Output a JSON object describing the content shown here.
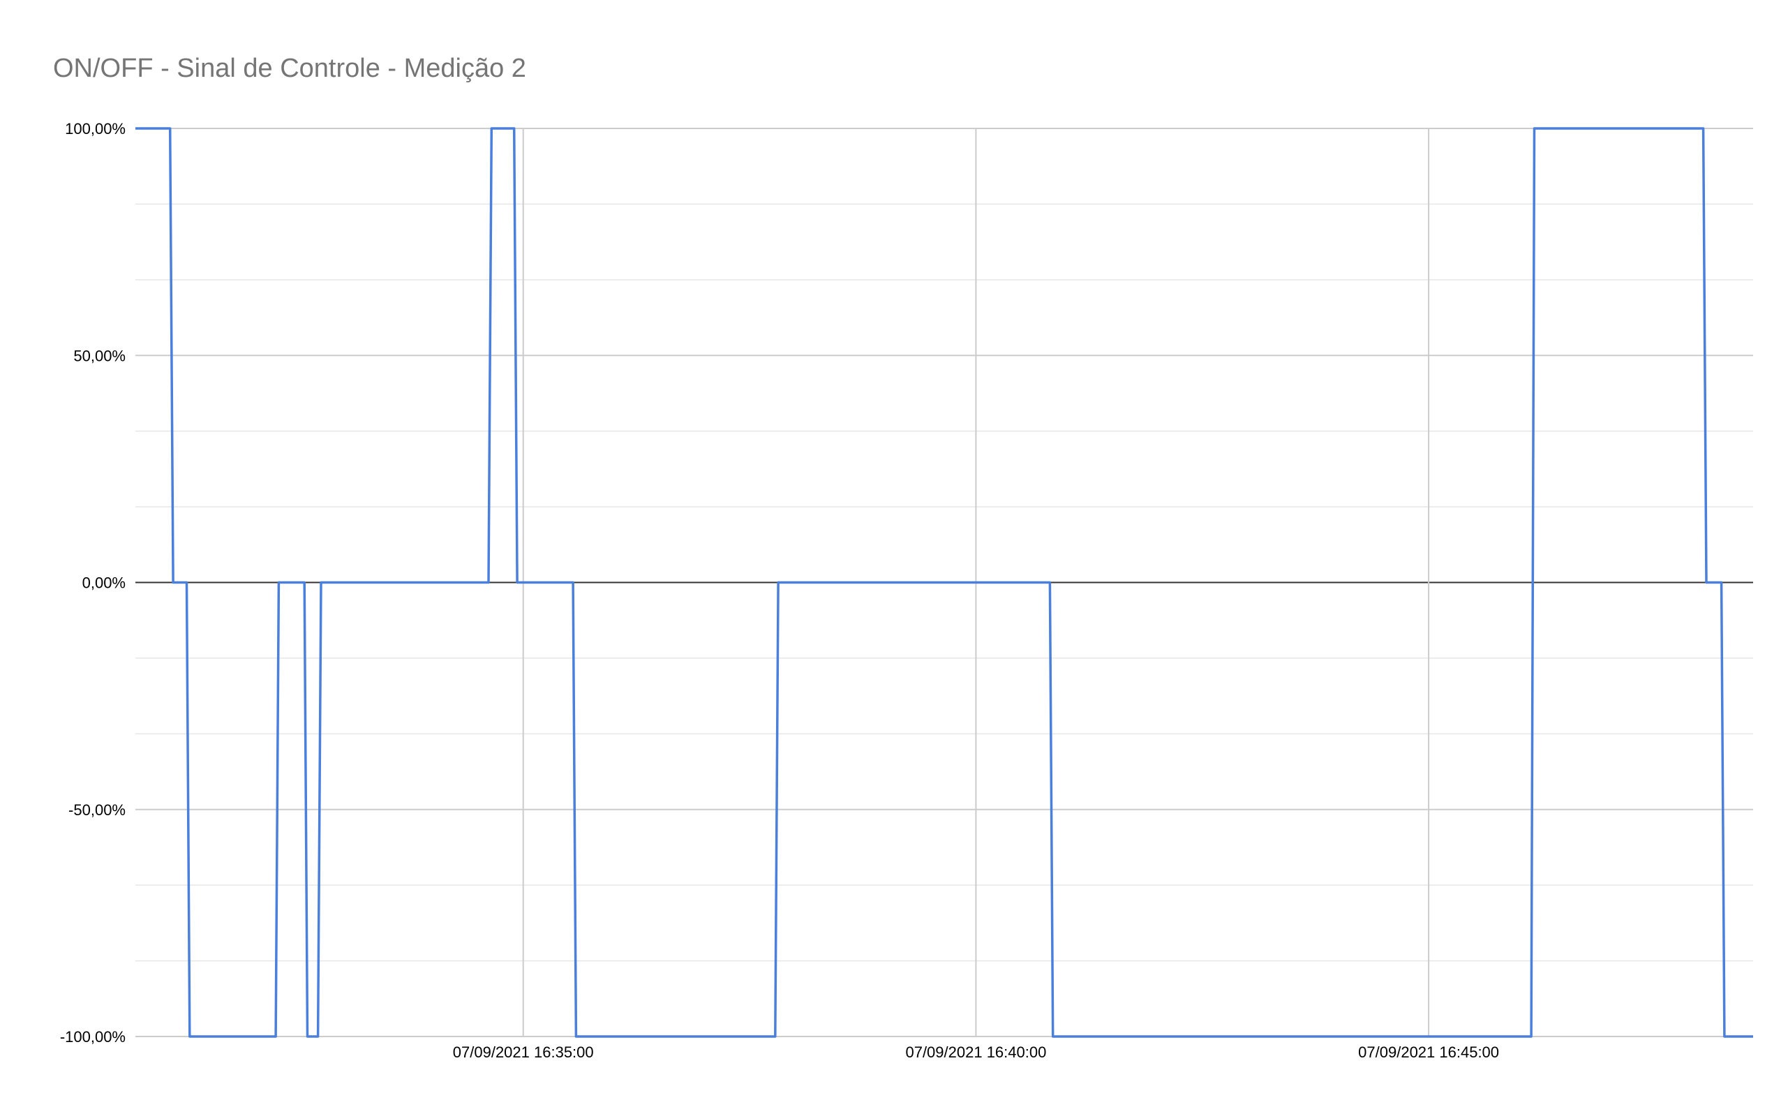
{
  "chart_data": {
    "type": "line",
    "title": "ON/OFF - Sinal de Controle - Medição 2",
    "xlabel": "",
    "ylabel": "",
    "ylim": [
      -100,
      100
    ],
    "yticks": [
      {
        "value": 100,
        "label": "100,00%"
      },
      {
        "value": 50,
        "label": "50,00%"
      },
      {
        "value": 0,
        "label": "0,00%"
      },
      {
        "value": -50,
        "label": "-50,00%"
      },
      {
        "value": -100,
        "label": "-100,00%"
      }
    ],
    "xlim": [
      "07/09/2021 16:30:43",
      "07/09/2021 16:48:35"
    ],
    "xticks": [
      {
        "value": "07/09/2021 16:35:00",
        "label": "07/09/2021 16:35:00"
      },
      {
        "value": "07/09/2021 16:40:00",
        "label": "07/09/2021 16:40:00"
      },
      {
        "value": "07/09/2021 16:45:00",
        "label": "07/09/2021 16:45:00"
      }
    ],
    "grid": true,
    "legend": "none",
    "series": [
      {
        "color": "#4a7fdc",
        "x": [
          "07/09/2021 16:30:43",
          "07/09/2021 16:31:06",
          "07/09/2021 16:31:08",
          "07/09/2021 16:31:17",
          "07/09/2021 16:31:19",
          "07/09/2021 16:32:16",
          "07/09/2021 16:32:18",
          "07/09/2021 16:32:35",
          "07/09/2021 16:32:37",
          "07/09/2021 16:32:44",
          "07/09/2021 16:32:46",
          "07/09/2021 16:34:37",
          "07/09/2021 16:34:39",
          "07/09/2021 16:34:54",
          "07/09/2021 16:34:56",
          "07/09/2021 16:35:33",
          "07/09/2021 16:35:35",
          "07/09/2021 16:37:47",
          "07/09/2021 16:37:49",
          "07/09/2021 16:40:49",
          "07/09/2021 16:40:51",
          "07/09/2021 16:46:08",
          "07/09/2021 16:46:10",
          "07/09/2021 16:48:02",
          "07/09/2021 16:48:04",
          "07/09/2021 16:48:14",
          "07/09/2021 16:48:16",
          "07/09/2021 16:48:35"
        ],
        "values": [
          100,
          100,
          0,
          0,
          -100,
          -100,
          0,
          0,
          -100,
          -100,
          0,
          0,
          100,
          100,
          0,
          0,
          -100,
          -100,
          0,
          0,
          -100,
          -100,
          100,
          100,
          0,
          0,
          -100,
          -100
        ]
      }
    ]
  }
}
